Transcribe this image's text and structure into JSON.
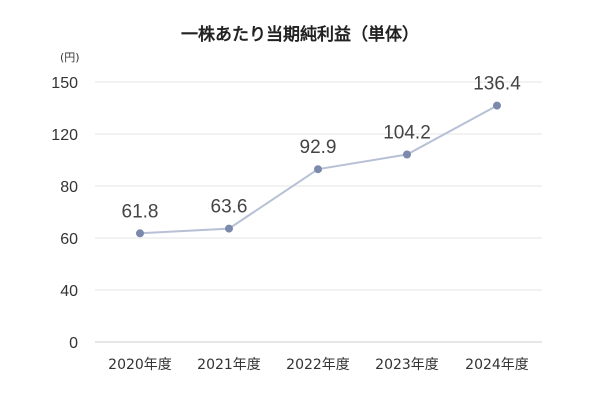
{
  "chart_data": {
    "type": "line",
    "title": "一株あたり当期純利益（単体）",
    "unit_label": "(円)",
    "categories": [
      "2020年度",
      "2021年度",
      "2022年度",
      "2023年度",
      "2024年度"
    ],
    "values": [
      61.8,
      63.6,
      92.9,
      104.2,
      136.4
    ],
    "value_labels": [
      "61.8",
      "63.6",
      "92.9",
      "104.2",
      "136.4"
    ],
    "y_ticks": [
      "0",
      "40",
      "60",
      "80",
      "120",
      "150"
    ],
    "y_tick_values": [
      0,
      40,
      60,
      80,
      120,
      150
    ],
    "grid": true,
    "legend": "none",
    "colors": {
      "line": "#b8c0d6",
      "marker": "#7b89ad",
      "grid": "#e6e6e6"
    }
  }
}
